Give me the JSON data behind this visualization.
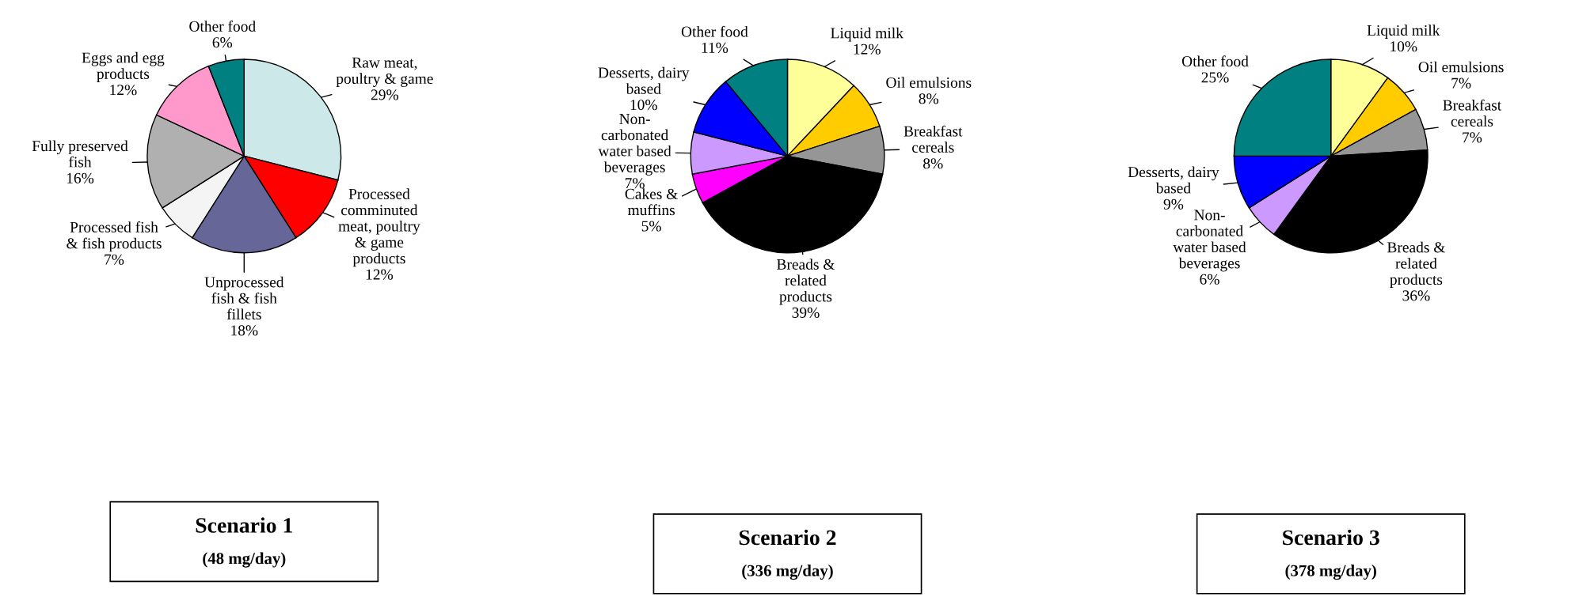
{
  "chart_data": [
    {
      "type": "pie",
      "title": "Scenario 1",
      "subtitle": "(48 mg/day)",
      "categories": [
        "Raw meat,\npoultry & game",
        "Processed\ncomminuted\nmeat, poultry\n& game\nproducts",
        "Unprocessed\nfish & fish\nfillets",
        "Processed fish\n& fish products",
        "Fully preserved\nfish",
        "Eggs and egg\nproducts",
        "Other food"
      ],
      "values": [
        29,
        12,
        18,
        7,
        16,
        12,
        6
      ],
      "colors": [
        "#cce8e8",
        "#ff0000",
        "#666699",
        "#f4f4f4",
        "#b0b0b0",
        "#ff99cc",
        "#008080"
      ],
      "value_labels": [
        "29%",
        "12%",
        "18%",
        "7%",
        "16%",
        "12%",
        "6%"
      ]
    },
    {
      "type": "pie",
      "title": "Scenario 2",
      "subtitle": "(336 mg/day)",
      "categories": [
        "Liquid milk",
        "Oil emulsions",
        "Breakfast\ncereals",
        "Breads &\nrelated\nproducts",
        "Cakes &\nmuffins",
        "Non-\ncarbonated\nwater based\nbeverages",
        "Desserts, dairy\nbased",
        "Other food"
      ],
      "values": [
        12,
        8,
        8,
        39,
        5,
        7,
        10,
        11
      ],
      "colors": [
        "#ffff99",
        "#ffcc00",
        "#969696",
        "#000000",
        "#ff00ff",
        "#cc99ff",
        "#0000ff",
        "#008080"
      ],
      "value_labels": [
        "12%",
        "8%",
        "8%",
        "39%",
        "5%",
        "7%",
        "10%",
        "11%"
      ]
    },
    {
      "type": "pie",
      "title": "Scenario 3",
      "subtitle": "(378 mg/day)",
      "categories": [
        "Liquid milk",
        "Oil emulsions",
        "Breakfast\ncereals",
        "Breads &\nrelated\nproducts",
        "Non-\ncarbonated\nwater based\nbeverages",
        "Desserts, dairy\nbased",
        "Other food"
      ],
      "values": [
        10,
        7,
        7,
        36,
        6,
        9,
        25
      ],
      "colors": [
        "#ffff99",
        "#ffcc00",
        "#969696",
        "#000000",
        "#cc99ff",
        "#0000ff",
        "#008080"
      ],
      "value_labels": [
        "10%",
        "7%",
        "7%",
        "36%",
        "6%",
        "9%",
        "25%"
      ]
    }
  ]
}
